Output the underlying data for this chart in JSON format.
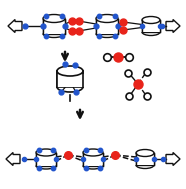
{
  "bg_color": "#ffffff",
  "red": "#e8231a",
  "blue": "#2255cc",
  "dark": "#111111",
  "figsize": [
    1.86,
    1.89
  ],
  "dpi": 100
}
